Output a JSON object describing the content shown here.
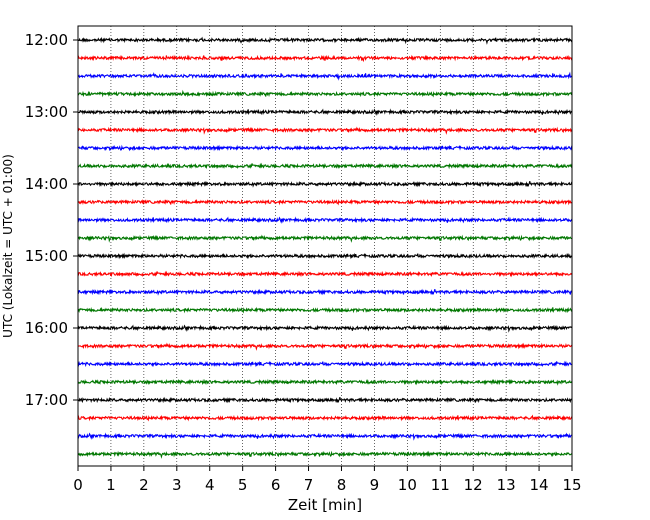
{
  "chart_data": {
    "type": "line",
    "title": "",
    "xlabel": "Zeit  [min]",
    "ylabel": "UTC (Lokalzeit = UTC + 01:00)",
    "xlim": [
      0,
      15
    ],
    "x_ticks": [
      "0",
      "1",
      "2",
      "3",
      "4",
      "5",
      "6",
      "7",
      "8",
      "9",
      "10",
      "11",
      "12",
      "13",
      "14",
      "15"
    ],
    "y_tick_labels": [
      "12:00",
      "13:00",
      "14:00",
      "15:00",
      "16:00",
      "17:00"
    ],
    "grid": "vertical dotted lines at each minute",
    "trace_colors": [
      "#000000",
      "#ff0000",
      "#0000ff",
      "#007700"
    ],
    "traces_per_hour": 4,
    "trace_interval_minutes": 15,
    "start_time": "12:00",
    "end_time": "17:45",
    "trace_count": 24
  }
}
